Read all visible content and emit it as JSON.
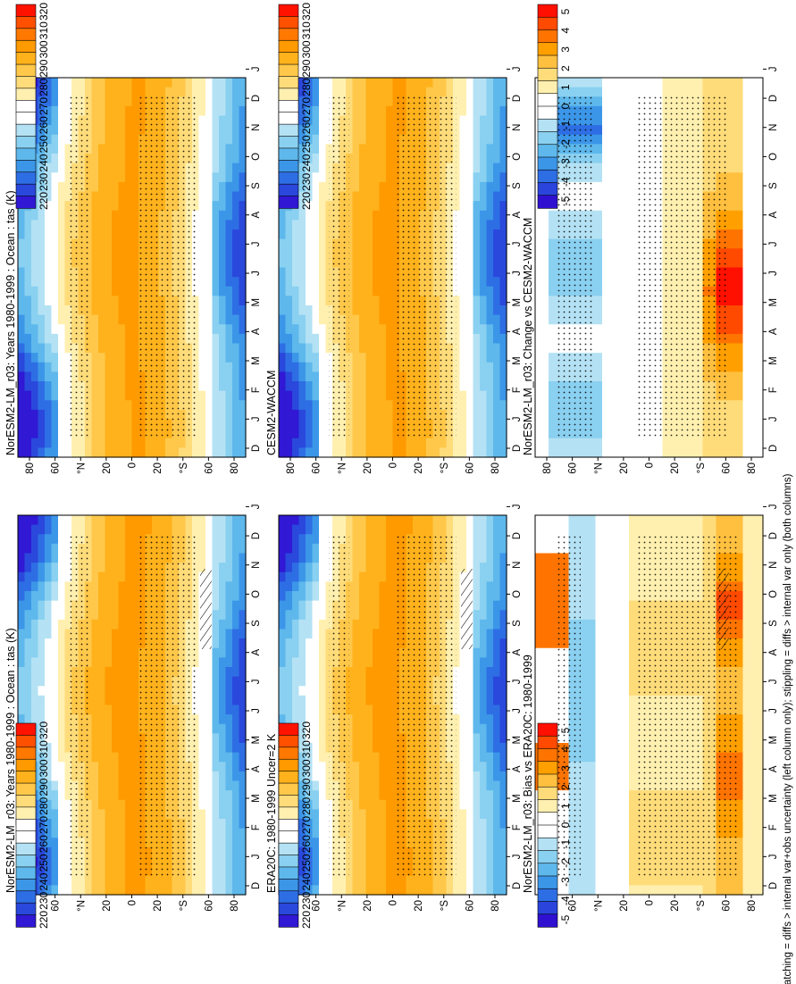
{
  "colors": {
    "abs_scale": [
      "#ff1200",
      "#ff5000",
      "#ff7800",
      "#ff9a00",
      "#ffb21c",
      "#ffc84a",
      "#ffdc7a",
      "#fff0b0",
      "#ffffff",
      "#ffffff",
      "#b4e2f4",
      "#8ad0f0",
      "#5eb8ec",
      "#3c96e8",
      "#2e6ee4",
      "#2a48dc",
      "#3018d4"
    ],
    "diff_scale": [
      "#ff1000",
      "#ff4a00",
      "#ff7400",
      "#ffa000",
      "#ffc040",
      "#ffdc7a",
      "#fff0b0",
      "#ffffff",
      "#ffffff",
      "#b4e2f4",
      "#8ad0f0",
      "#5eb8ec",
      "#3c96e8",
      "#2e6ee4",
      "#2a44dc",
      "#3010d0"
    ]
  },
  "months": [
    "J",
    "F",
    "M",
    "A",
    "M",
    "J",
    "J",
    "A",
    "S",
    "O",
    "N",
    "D",
    "J"
  ],
  "start_label": "D",
  "lat_labels": [
    "80",
    "60",
    "°N",
    "20",
    "0",
    "20",
    "°S",
    "60",
    "80"
  ],
  "abs_colorbar_labels": [
    "320",
    "310",
    "300",
    "290",
    "280",
    "270",
    "260",
    "250",
    "240",
    "230",
    "220"
  ],
  "diff_colorbar_labels": [
    "5",
    "4",
    "3",
    "2",
    "1",
    "0",
    "-1",
    "-2",
    "-3",
    "-4",
    "-5"
  ],
  "footnote": "hatching = diffs > internal var+obs uncertainty (left column only); stippling = diffs > internal var only (both columns)",
  "chart_data": [
    {
      "id": "p1",
      "type": "heatmap",
      "title": "NorESM2-LM_r03: Years 1980-1999 : Ocean : tas (K)",
      "x": "month",
      "y": "latitude",
      "ylim": [
        -90,
        90
      ],
      "levels": [
        220,
        320
      ],
      "kind": "abs",
      "stipple": true,
      "hatch": true
    },
    {
      "id": "p2",
      "type": "heatmap",
      "title": "NorESM2-LM_r03: Years 1980-1999 : Ocean : tas (K)",
      "x": "month",
      "y": "latitude",
      "ylim": [
        -90,
        90
      ],
      "levels": [
        220,
        320
      ],
      "kind": "abs",
      "stipple": true,
      "hatch": false
    },
    {
      "id": "p3",
      "type": "heatmap",
      "title": "ERA20C: 1980-1999 Uncer=2 K",
      "x": "month",
      "y": "latitude",
      "ylim": [
        -90,
        90
      ],
      "levels": [
        220,
        320
      ],
      "kind": "abs",
      "stipple": true,
      "hatch": true
    },
    {
      "id": "p4",
      "type": "heatmap",
      "title": "CESM2-WACCM",
      "x": "month",
      "y": "latitude",
      "ylim": [
        -90,
        90
      ],
      "levels": [
        220,
        320
      ],
      "kind": "abs",
      "stipple": true,
      "hatch": false
    },
    {
      "id": "p5",
      "type": "heatmap",
      "title": "NorESM2-LM_r03: Bias vs ERA20C: 1980-1999",
      "x": "month",
      "y": "latitude",
      "ylim": [
        -90,
        90
      ],
      "levels": [
        -5,
        5
      ],
      "kind": "bias",
      "stipple": true,
      "hatch": true
    },
    {
      "id": "p6",
      "type": "heatmap",
      "title": "NorESM2-LM_r03: Change vs CESM2-WACCM",
      "x": "month",
      "y": "latitude",
      "ylim": [
        -90,
        90
      ],
      "levels": [
        -5,
        5
      ],
      "kind": "change",
      "stipple": true,
      "hatch": false
    }
  ]
}
